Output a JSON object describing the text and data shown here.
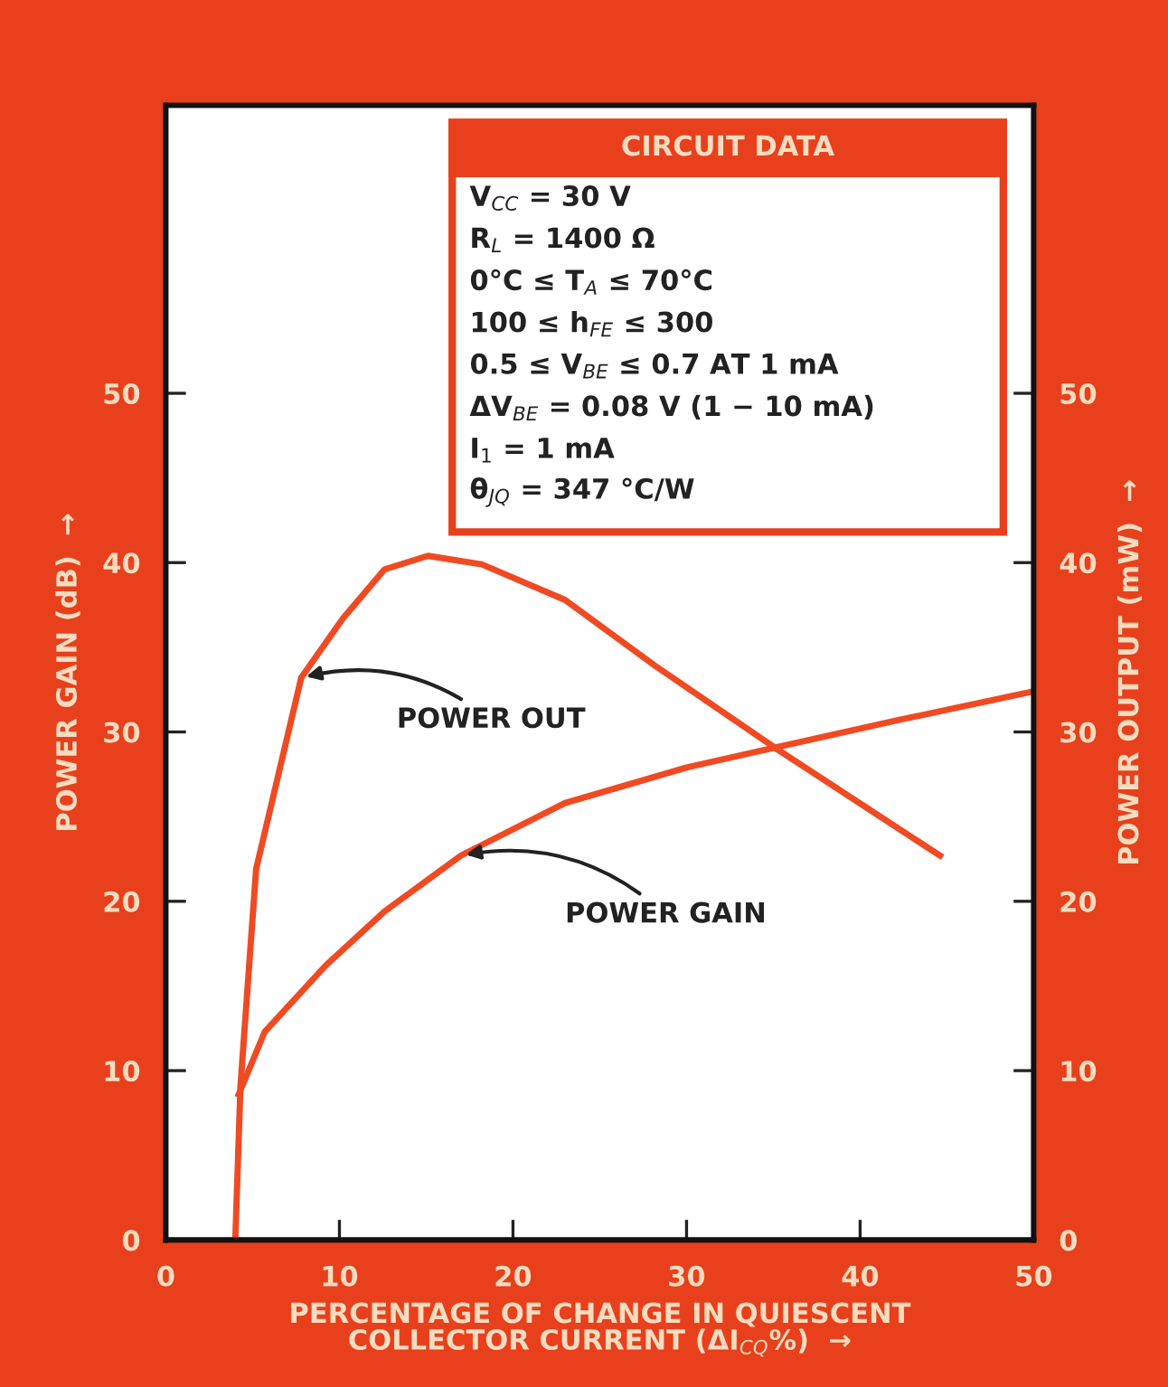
{
  "chart_data": {
    "type": "line",
    "xlabel": "PERCENTAGE OF CHANGE IN QUIESCENT\nCOLLECTOR CURRENT (ΔI$_{CQ}$%)  →",
    "ylabel": "POWER GAIN (dB)  →",
    "y2label": "POWER OUTPUT (mW)  →",
    "xlim": [
      0,
      50
    ],
    "xticks": [
      0,
      10,
      20,
      30,
      40,
      50
    ],
    "ylim": [
      0,
      67
    ],
    "yticks": [
      0,
      10,
      20,
      30,
      40,
      50
    ],
    "y2lim": [
      0,
      67
    ],
    "y2ticks": [
      0,
      10,
      20,
      30,
      40,
      50
    ],
    "grid": false,
    "legend": false,
    "marker": "none",
    "line_style": "solid",
    "series": [
      {
        "color": "#f04a23",
        "x": [
          4.2,
          5.7,
          9.2,
          12.6,
          17,
          23,
          30,
          35.2,
          42.2,
          50
        ],
        "values": [
          8.6,
          12.3,
          16.2,
          19.4,
          22.7,
          25.8,
          27.9,
          29.1,
          30.7,
          32.4
        ]
      },
      {
        "color": "#f04a23",
        "axis": "y2",
        "x": [
          4.0,
          4.3,
          5.2,
          7.8,
          10.2,
          12.6,
          15.1,
          18.2,
          23,
          28.2,
          35.2,
          44.6
        ],
        "values": [
          0,
          9.1,
          21.9,
          33.2,
          36.7,
          39.6,
          40.4,
          39.9,
          37.8,
          33.9,
          29,
          22.7
        ]
      }
    ],
    "annotations": [
      {
        "text": "POWER OUT",
        "x": 7.8,
        "y": 33.2
      },
      {
        "text": "POWER GAIN",
        "x": 17,
        "y": 22.7
      },
      "CIRCUIT DATA",
      "V$_{CC}$ = 30 V",
      "R$_{L}$ = 1400 Ω",
      "0°C ≤ T$_{A}$ ≤ 70°C",
      "100 ≤ h$_{FE}$ ≤ 300",
      "0.5 ≤ V$_{BE}$ ≤ 0.7 AT 1 mA",
      "ΔV$_{BE}$ = 0.08 V (1 − 10 mA)",
      "I$_{1}$ = 1 mA",
      "θ$_{JQ}$ = 347 °C/W"
    ]
  }
}
